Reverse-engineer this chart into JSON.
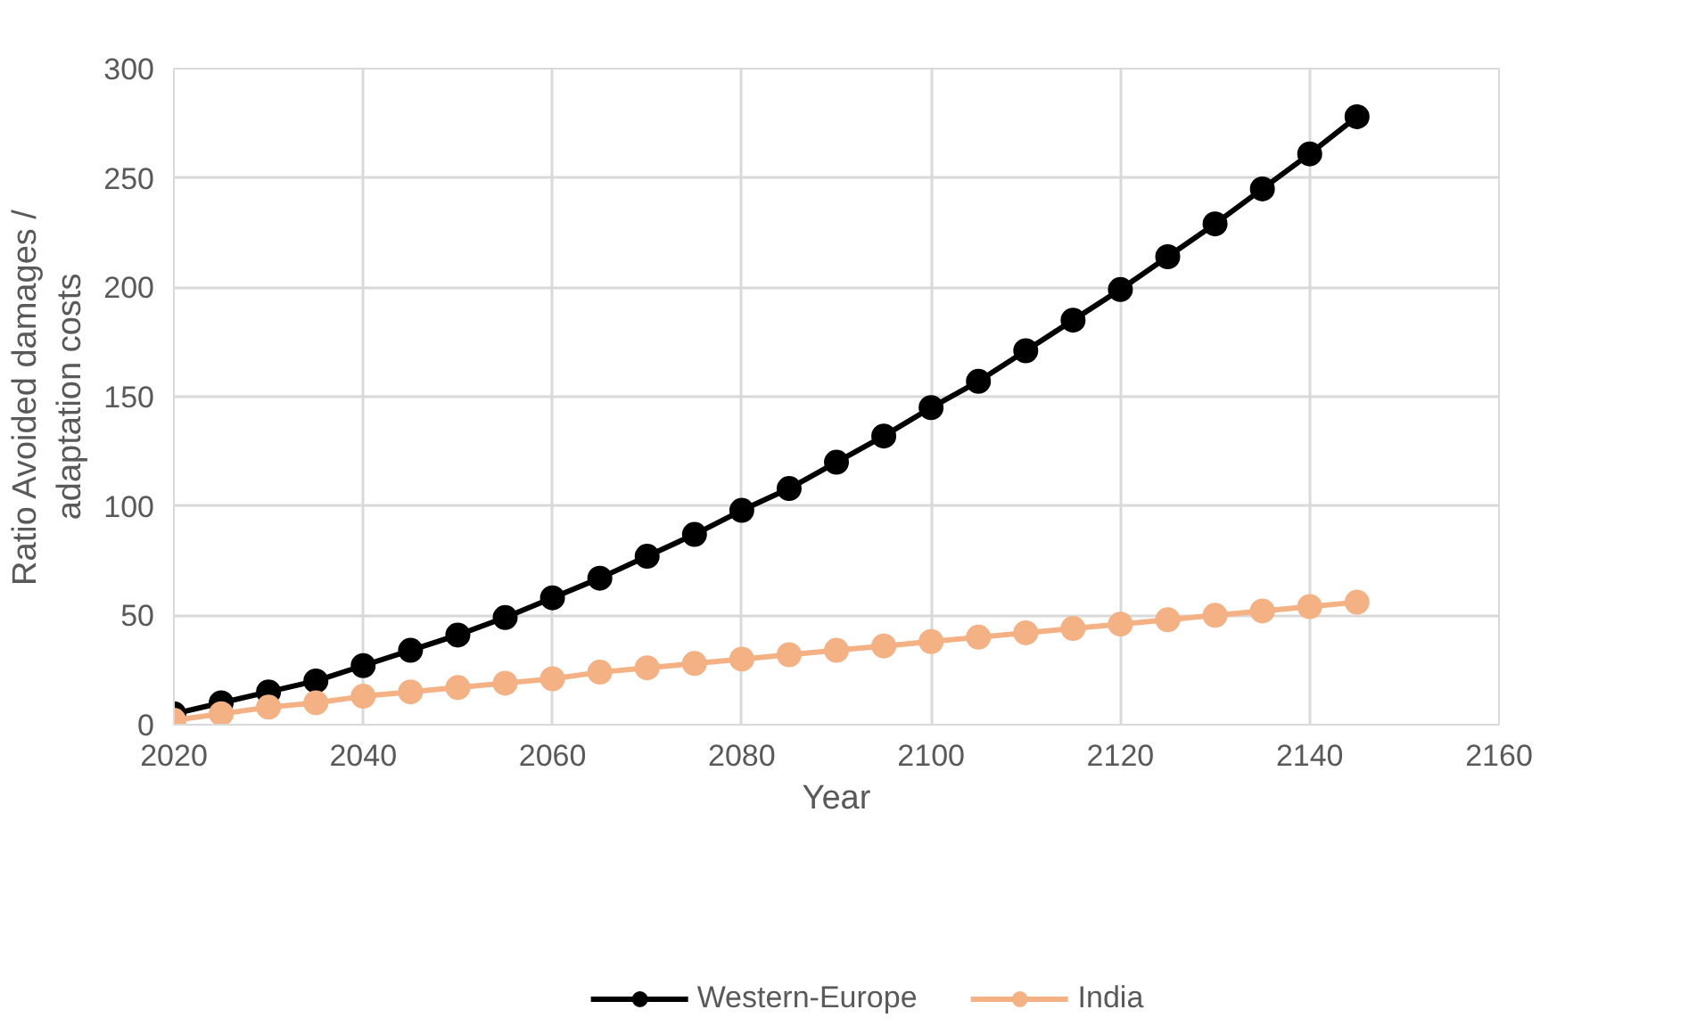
{
  "chart_data": {
    "type": "line",
    "xlabel": "Year",
    "ylabel": "Ratio Avoided damages /\nadaptation costs",
    "x": [
      2020,
      2025,
      2030,
      2035,
      2040,
      2045,
      2050,
      2055,
      2060,
      2065,
      2070,
      2075,
      2080,
      2085,
      2090,
      2095,
      2100,
      2105,
      2110,
      2115,
      2120,
      2125,
      2130,
      2135,
      2140,
      2145
    ],
    "series": [
      {
        "name": "Western-Europe",
        "color": "#000000",
        "values": [
          5,
          10,
          15,
          20,
          27,
          34,
          41,
          49,
          58,
          67,
          77,
          87,
          98,
          108,
          120,
          132,
          145,
          157,
          171,
          185,
          199,
          214,
          229,
          245,
          261,
          278
        ]
      },
      {
        "name": "India",
        "color": "#f4b183",
        "values": [
          2,
          5,
          8,
          10,
          13,
          15,
          17,
          19,
          21,
          24,
          26,
          28,
          30,
          32,
          34,
          36,
          38,
          40,
          42,
          44,
          46,
          48,
          50,
          52,
          54,
          56
        ]
      }
    ],
    "xlim": [
      2020,
      2160
    ],
    "xticks": [
      2020,
      2040,
      2060,
      2080,
      2100,
      2120,
      2140,
      2160
    ],
    "ylim": [
      0,
      300
    ],
    "yticks": [
      0,
      50,
      100,
      150,
      200,
      250,
      300
    ],
    "grid": true,
    "legend": "bottom",
    "marker": "circle",
    "line_style": "solid"
  }
}
